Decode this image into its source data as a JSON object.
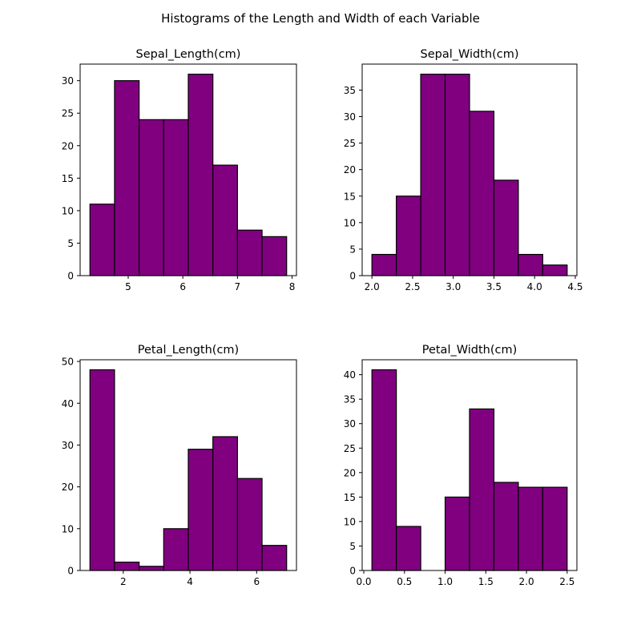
{
  "figure": {
    "title": "Histograms of the Length and Width of each Variable",
    "bar_color": "#800080",
    "edge_color": "#000000"
  },
  "chart_data": [
    {
      "type": "bar",
      "title": "Sepal_Length(cm)",
      "bin_edges": [
        4.3,
        4.75,
        5.2,
        5.65,
        6.1,
        6.55,
        7.0,
        7.45,
        7.9
      ],
      "values": [
        11,
        30,
        24,
        24,
        31,
        17,
        7,
        6
      ],
      "xlim": [
        4.12,
        8.08
      ],
      "ylim": [
        0,
        32.55
      ],
      "xticks": [
        5,
        6,
        7,
        8
      ],
      "xticklabels": [
        "5",
        "6",
        "7",
        "8"
      ],
      "yticks": [
        0,
        5,
        10,
        15,
        20,
        25,
        30
      ],
      "yticklabels": [
        "0",
        "5",
        "10",
        "15",
        "20",
        "25",
        "30"
      ],
      "grid": false
    },
    {
      "type": "bar",
      "title": "Sepal_Width(cm)",
      "bin_edges": [
        2.0,
        2.3,
        2.6,
        2.9,
        3.2,
        3.5,
        3.8,
        4.1,
        4.4
      ],
      "values": [
        4,
        15,
        38,
        38,
        31,
        18,
        4,
        2
      ],
      "xlim": [
        1.88,
        4.52
      ],
      "ylim": [
        0,
        39.9
      ],
      "xticks": [
        2.0,
        2.5,
        3.0,
        3.5,
        4.0,
        4.5
      ],
      "xticklabels": [
        "2.0",
        "2.5",
        "3.0",
        "3.5",
        "4.0",
        "4.5"
      ],
      "yticks": [
        0,
        5,
        10,
        15,
        20,
        25,
        30,
        35
      ],
      "yticklabels": [
        "0",
        "5",
        "10",
        "15",
        "20",
        "25",
        "30",
        "35"
      ],
      "grid": false
    },
    {
      "type": "bar",
      "title": "Petal_Length(cm)",
      "bin_edges": [
        1.0,
        1.7375,
        2.475,
        3.2125,
        3.95,
        4.6875,
        5.425,
        6.1625,
        6.9
      ],
      "values": [
        48,
        2,
        1,
        10,
        29,
        32,
        22,
        6
      ],
      "xlim": [
        0.705,
        7.195
      ],
      "ylim": [
        0,
        50.4
      ],
      "xticks": [
        2,
        4,
        6
      ],
      "xticklabels": [
        "2",
        "4",
        "6"
      ],
      "yticks": [
        0,
        10,
        20,
        30,
        40,
        50
      ],
      "yticklabels": [
        "0",
        "10",
        "20",
        "30",
        "40",
        "50"
      ],
      "grid": false
    },
    {
      "type": "bar",
      "title": "Petal_Width(cm)",
      "bin_edges": [
        0.1,
        0.4,
        0.7,
        1.0,
        1.3,
        1.6,
        1.9,
        2.2,
        2.5
      ],
      "values": [
        41,
        9,
        0,
        15,
        33,
        18,
        17,
        17
      ],
      "xlim": [
        -0.02,
        2.62
      ],
      "ylim": [
        0,
        43.05
      ],
      "xticks": [
        0.0,
        0.5,
        1.0,
        1.5,
        2.0,
        2.5
      ],
      "xticklabels": [
        "0.0",
        "0.5",
        "1.0",
        "1.5",
        "2.0",
        "2.5"
      ],
      "yticks": [
        0,
        5,
        10,
        15,
        20,
        25,
        30,
        35,
        40
      ],
      "yticklabels": [
        "0",
        "5",
        "10",
        "15",
        "20",
        "25",
        "30",
        "35",
        "40"
      ],
      "grid": false
    }
  ]
}
